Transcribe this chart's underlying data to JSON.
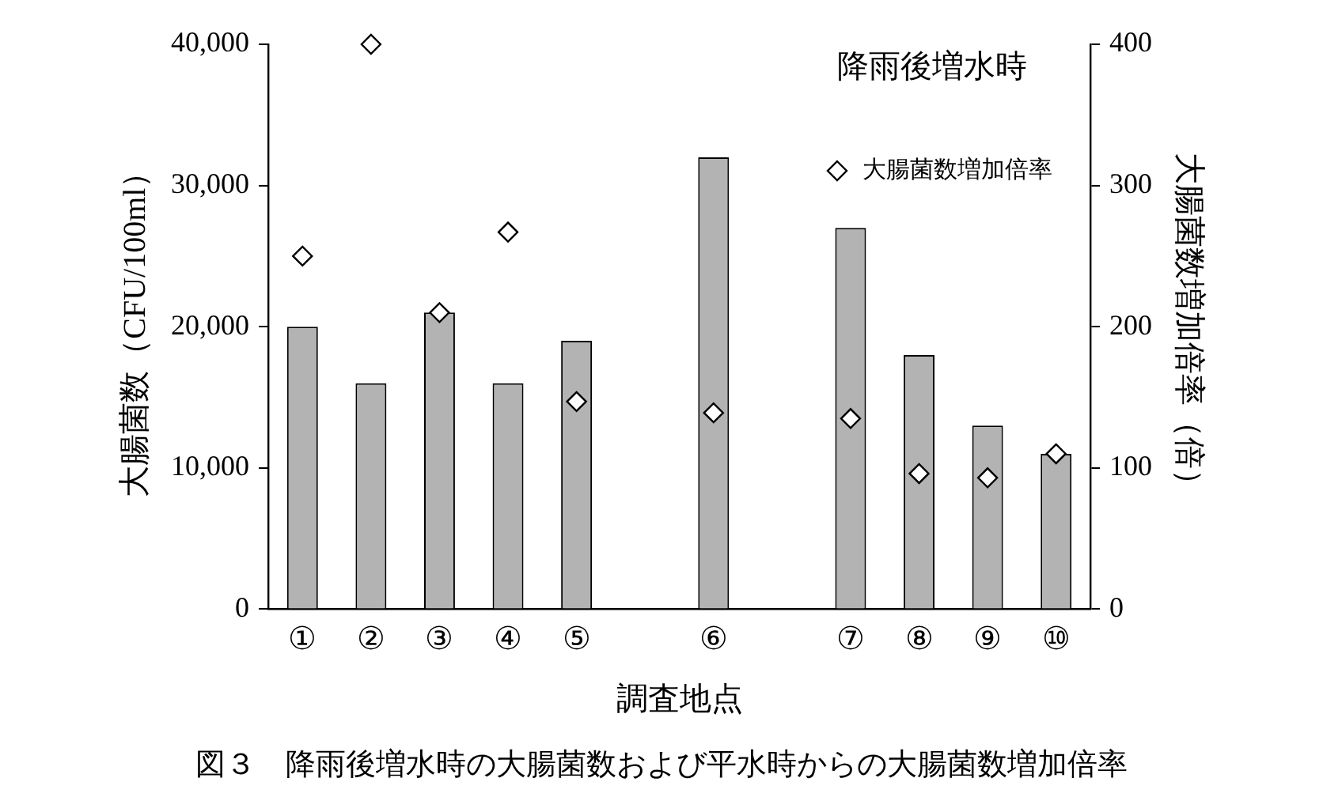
{
  "chart_data": {
    "type": "bar",
    "title": "図３　降雨後増水時の大腸菌数および平水時からの大腸菌数増加倍率",
    "xlabel": "調査地点",
    "ylabel": "大腸菌数（CFU/100ml）",
    "y2label": "大腸菌数増加倍率（倍）",
    "annotations": [
      "降雨後増水時"
    ],
    "categories": [
      "①",
      "②",
      "③",
      "④",
      "⑤",
      null,
      "⑥",
      null,
      "⑦",
      "⑧",
      "⑨",
      "⑩"
    ],
    "series": [
      {
        "color": "#b3b3b3",
        "values": [
          20000,
          16000,
          21000,
          16000,
          19000,
          null,
          32000,
          null,
          27000,
          18000,
          13000,
          11000
        ]
      },
      {
        "type": "scatter",
        "name": "大腸菌数増加倍率",
        "axis": "y2",
        "color": "#ffffff",
        "marker": "diamond",
        "values": [
          250,
          400,
          210,
          267,
          147,
          null,
          139,
          null,
          135,
          96,
          93,
          110
        ]
      }
    ],
    "ylim": [
      0,
      40000
    ],
    "yticks": [
      {
        "value": 0,
        "label": "0"
      },
      {
        "value": 10000,
        "label": "10,000"
      },
      {
        "value": 20000,
        "label": "20,000"
      },
      {
        "value": 30000,
        "label": "30,000"
      },
      {
        "value": 40000,
        "label": "40,000"
      }
    ],
    "y2lim": [
      0,
      400
    ],
    "y2ticks": [
      0,
      100,
      200,
      300,
      400
    ],
    "grid": false,
    "legend": "top right"
  }
}
